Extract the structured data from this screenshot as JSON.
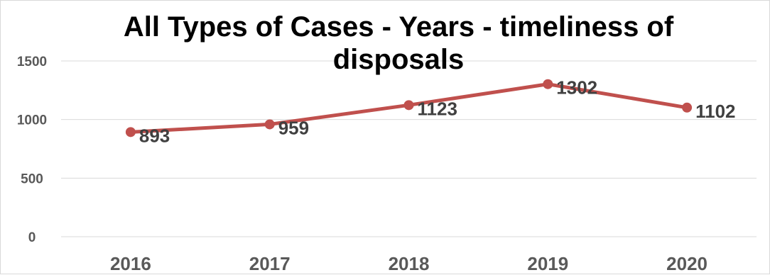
{
  "chart_data": {
    "type": "line",
    "title_lines": [
      "All Types of Cases - Years - timeliness of",
      "disposals"
    ],
    "categories": [
      "2016",
      "2017",
      "2018",
      "2019",
      "2020"
    ],
    "series": [
      {
        "values": [
          893,
          959,
          1123,
          1302,
          1102
        ],
        "color": "#c0504d"
      }
    ],
    "data_labels": [
      "893",
      "959",
      "1123",
      "1302",
      "1102"
    ],
    "y_ticks": [
      "0",
      "500",
      "1000",
      "1500"
    ],
    "ylim": [
      0,
      1500
    ],
    "grid": true,
    "legend": "none"
  }
}
